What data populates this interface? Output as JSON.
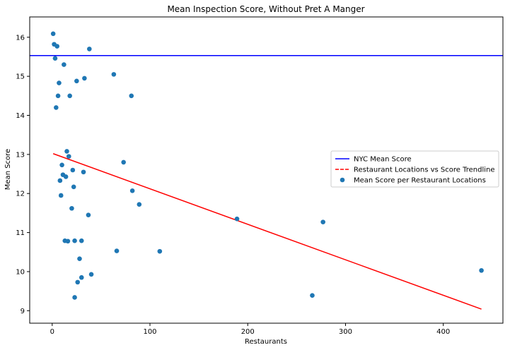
{
  "chart_data": {
    "type": "scatter",
    "title": "Mean Inspection Score, Without Pret A Manger",
    "xlabel": "Restaurants",
    "ylabel": "Mean Score",
    "xlim": [
      -23,
      461
    ],
    "ylim": [
      8.68,
      16.52
    ],
    "xticks": [
      0,
      100,
      200,
      300,
      400
    ],
    "yticks": [
      9,
      10,
      11,
      12,
      13,
      14,
      15,
      16
    ],
    "grid": false,
    "legend_position": "center-right",
    "colors": {
      "points": "#1f77b4",
      "mean_line": "#0000ff",
      "trendline": "#ff0000"
    },
    "series": [
      {
        "name": "NYC Mean Score",
        "kind": "hline",
        "y": 15.53
      },
      {
        "name": "Restaurant Locations vs Score Trendline",
        "kind": "line",
        "style": "dashed",
        "x": [
          1,
          439
        ],
        "y": [
          13.02,
          9.04
        ]
      },
      {
        "name": "Mean Score per Restaurant Locations",
        "kind": "scatter",
        "points": [
          [
            1,
            16.09
          ],
          [
            2,
            15.82
          ],
          [
            5,
            15.77
          ],
          [
            3,
            15.46
          ],
          [
            12,
            15.3
          ],
          [
            38,
            15.7
          ],
          [
            7,
            14.83
          ],
          [
            6,
            14.5
          ],
          [
            4,
            14.2
          ],
          [
            25,
            14.88
          ],
          [
            33,
            14.95
          ],
          [
            63,
            15.05
          ],
          [
            18,
            14.5
          ],
          [
            81,
            14.5
          ],
          [
            15,
            13.08
          ],
          [
            17,
            12.95
          ],
          [
            10,
            12.73
          ],
          [
            21,
            12.6
          ],
          [
            32,
            12.55
          ],
          [
            73,
            12.8
          ],
          [
            11,
            12.48
          ],
          [
            14,
            12.43
          ],
          [
            8,
            12.33
          ],
          [
            22,
            12.17
          ],
          [
            9,
            11.95
          ],
          [
            82,
            12.07
          ],
          [
            89,
            11.72
          ],
          [
            20,
            11.62
          ],
          [
            37,
            11.45
          ],
          [
            189,
            11.35
          ],
          [
            277,
            11.27
          ],
          [
            13,
            10.79
          ],
          [
            16,
            10.78
          ],
          [
            23,
            10.79
          ],
          [
            30,
            10.79
          ],
          [
            66,
            10.53
          ],
          [
            110,
            10.52
          ],
          [
            28,
            10.33
          ],
          [
            40,
            9.93
          ],
          [
            30,
            9.85
          ],
          [
            26,
            9.73
          ],
          [
            23,
            9.34
          ],
          [
            266,
            9.39
          ],
          [
            439,
            10.03
          ]
        ]
      }
    ]
  }
}
